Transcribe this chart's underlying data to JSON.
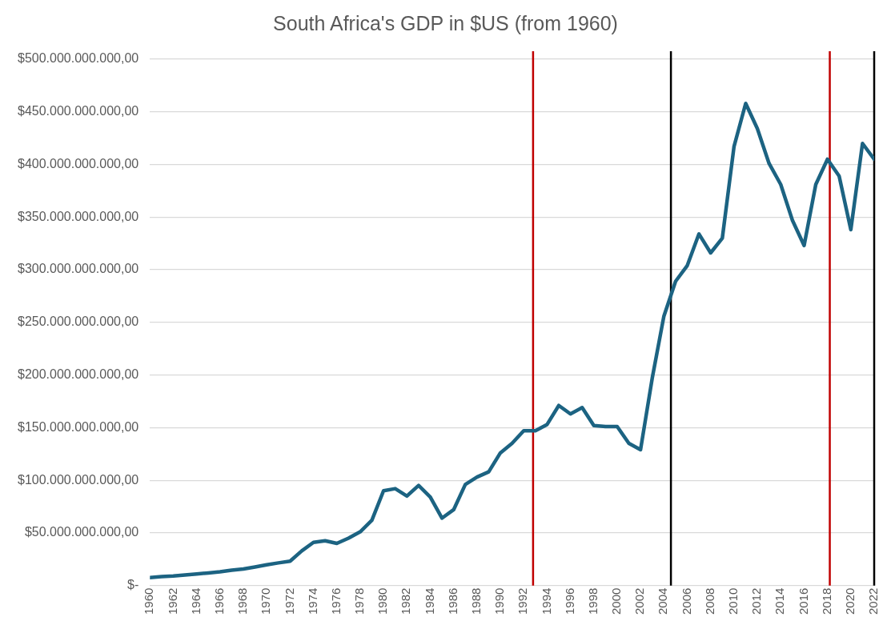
{
  "chart_data": {
    "type": "line",
    "title": "South Africa's GDP in $US (from 1960)",
    "x": [
      1960,
      1961,
      1962,
      1963,
      1964,
      1965,
      1966,
      1967,
      1968,
      1969,
      1970,
      1971,
      1972,
      1973,
      1974,
      1975,
      1976,
      1977,
      1978,
      1979,
      1980,
      1981,
      1982,
      1983,
      1984,
      1985,
      1986,
      1987,
      1988,
      1989,
      1990,
      1991,
      1992,
      1993,
      1994,
      1995,
      1996,
      1997,
      1998,
      1999,
      2000,
      2001,
      2002,
      2003,
      2004,
      2005,
      2006,
      2007,
      2008,
      2009,
      2010,
      2011,
      2012,
      2013,
      2014,
      2015,
      2016,
      2017,
      2018,
      2019,
      2020,
      2021,
      2022
    ],
    "series": [
      {
        "color": "#1c6382",
        "values": [
          7600000000,
          8400000000,
          9000000000,
          9900000000,
          10900000000,
          11900000000,
          13000000000,
          14600000000,
          15700000000,
          17600000000,
          19700000000,
          21500000000,
          23100000000,
          32900000000,
          41000000000,
          42500000000,
          40000000000,
          45000000000,
          51000000000,
          62000000000,
          90000000000,
          92000000000,
          85000000000,
          95000000000,
          84000000000,
          64000000000,
          72000000000,
          96000000000,
          103000000000,
          108000000000,
          126000000000,
          135000000000,
          147000000000,
          147000000000,
          153000000000,
          171000000000,
          163000000000,
          169000000000,
          152000000000,
          151000000000,
          151000000000,
          135000000000,
          129000000000,
          197000000000,
          256000000000,
          289000000000,
          304000000000,
          334000000000,
          316000000000,
          330000000000,
          417000000000,
          458000000000,
          434000000000,
          401000000000,
          381000000000,
          347000000000,
          323000000000,
          381000000000,
          405000000000,
          389000000000,
          338000000000,
          420000000000,
          405000000000
        ]
      }
    ],
    "xlim": [
      1960,
      2022
    ],
    "xticks": [
      1960,
      1962,
      1964,
      1966,
      1968,
      1970,
      1972,
      1974,
      1976,
      1978,
      1980,
      1982,
      1984,
      1986,
      1988,
      1990,
      1992,
      1994,
      1996,
      1998,
      2000,
      2002,
      2004,
      2006,
      2008,
      2010,
      2012,
      2014,
      2016,
      2018,
      2020,
      2022
    ],
    "ylim": [
      0,
      500000000000
    ],
    "yticks": [
      {
        "value": 0,
        "label": "$-"
      },
      {
        "value": 50000000000,
        "label": "$50.000.000.000,00"
      },
      {
        "value": 100000000000,
        "label": "$100.000.000.000,00"
      },
      {
        "value": 150000000000,
        "label": "$150.000.000.000,00"
      },
      {
        "value": 200000000000,
        "label": "$200.000.000.000,00"
      },
      {
        "value": 250000000000,
        "label": "$250.000.000.000,00"
      },
      {
        "value": 300000000000,
        "label": "$300.000.000.000,00"
      },
      {
        "value": 350000000000,
        "label": "$350.000.000.000,00"
      },
      {
        "value": 400000000000,
        "label": "$400.000.000.000,00"
      },
      {
        "value": 450000000000,
        "label": "$450.000.000.000,00"
      },
      {
        "value": 500000000000,
        "label": "$500.000.000.000,00"
      }
    ],
    "ref_lines": [
      {
        "axis": "x",
        "value": 1992.8,
        "color": "#c00000"
      },
      {
        "axis": "x",
        "value": 2004.6,
        "color": "#000000"
      },
      {
        "axis": "x",
        "value": 2018.2,
        "color": "#c00000"
      },
      {
        "axis": "x",
        "value": 2022,
        "color": "#000000"
      }
    ],
    "grid": "y",
    "legend": false,
    "marker": "none",
    "line_style": "solid"
  }
}
